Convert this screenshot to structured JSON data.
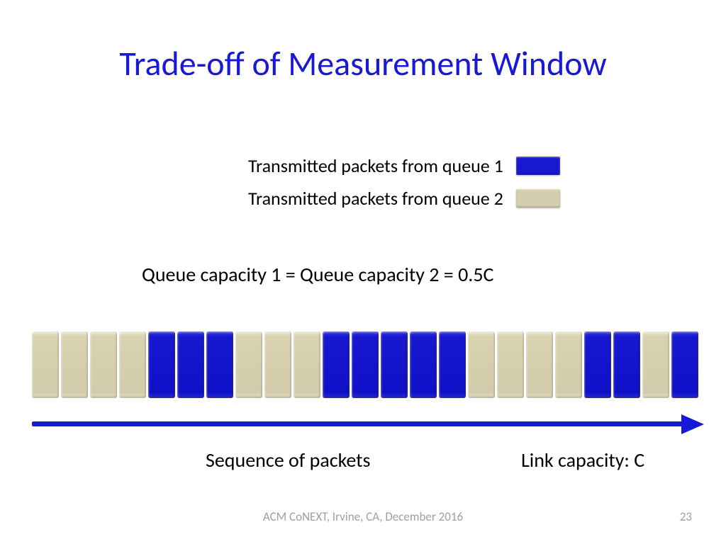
{
  "title": {
    "text": "Trade-off of Measurement Window",
    "color": "#1818d8"
  },
  "legend": {
    "items": [
      {
        "label": "Transmitted packets from queue 1",
        "color": "#1818d0"
      },
      {
        "label": "Transmitted packets from queue 2",
        "color": "#d4ceae"
      }
    ]
  },
  "capacity_text": "Queue capacity 1 = Queue capacity 2 = 0.5C",
  "packets": {
    "colors": {
      "blue": "#1818d0",
      "tan": "#d4ceae"
    },
    "sequence": [
      "tan",
      "tan",
      "tan",
      "tan",
      "blue",
      "blue",
      "blue",
      "tan",
      "tan",
      "tan",
      "blue",
      "blue",
      "blue",
      "blue",
      "blue",
      "tan",
      "tan",
      "tan",
      "tan",
      "blue",
      "blue",
      "tan",
      "blue"
    ]
  },
  "arrow": {
    "color": "#1818d8"
  },
  "sequence_label": "Sequence of packets",
  "link_label": "Link capacity: C",
  "footer": "ACM CoNEXT, Irvine, CA, December 2016",
  "page_number": "23"
}
